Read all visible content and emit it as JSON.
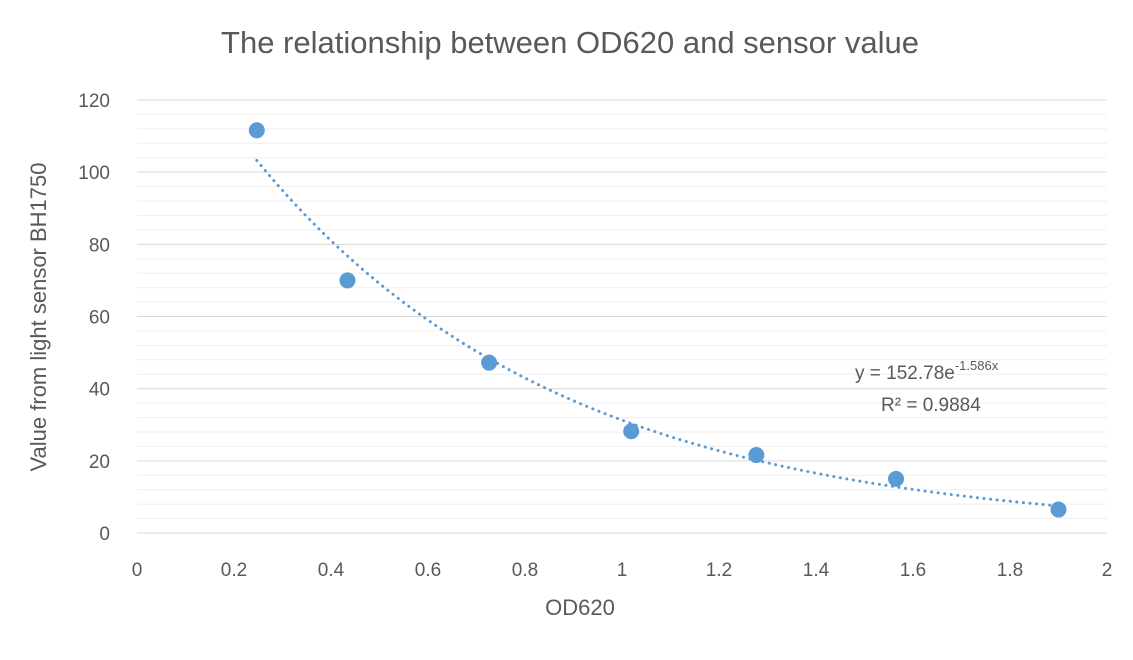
{
  "chart_data": {
    "type": "scatter",
    "title": "The relationship between OD620 and sensor value",
    "xlabel": "OD620",
    "ylabel": "Value from light sensor BH1750",
    "xlim": [
      0,
      2
    ],
    "ylim": [
      0,
      120
    ],
    "x_ticks": [
      "0",
      "0.2",
      "0.4",
      "0.6",
      "0.8",
      "1",
      "1.2",
      "1.4",
      "1.6",
      "1.8",
      "2"
    ],
    "y_ticks": [
      "0",
      "20",
      "40",
      "60",
      "80",
      "100",
      "120"
    ],
    "minor_gridlines": true,
    "series": [
      {
        "color": "#5B9BD5",
        "points": [
          {
            "x": 0.247,
            "y": 111.6
          },
          {
            "x": 0.434,
            "y": 70.0
          },
          {
            "x": 0.726,
            "y": 47.2
          },
          {
            "x": 1.019,
            "y": 28.2
          },
          {
            "x": 1.277,
            "y": 21.6
          },
          {
            "x": 1.565,
            "y": 15.0
          },
          {
            "x": 1.9,
            "y": 6.5
          }
        ]
      }
    ],
    "trendline": {
      "type": "exponential",
      "a": 152.78,
      "b": -1.586,
      "x_range": [
        0.247,
        1.9
      ],
      "style": "dotted",
      "color": "#5B9BD5",
      "equation_main": "y = 152.78e",
      "equation_exponent": "-1.586x",
      "r_squared": "R² = 0.9884"
    }
  }
}
